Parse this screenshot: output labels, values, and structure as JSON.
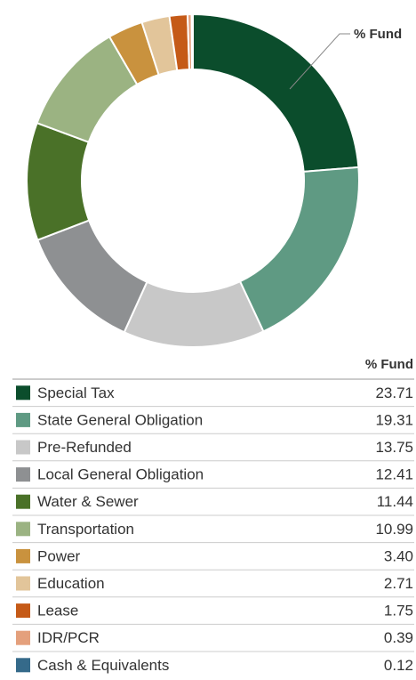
{
  "chart_data": {
    "type": "donut",
    "annotation": "% Fund",
    "value_header": "% Fund",
    "categories": [
      "Special Tax",
      "State General Obligation",
      "Pre-Refunded",
      "Local General Obligation",
      "Water & Sewer",
      "Transportation",
      "Power",
      "Education",
      "Lease",
      "IDR/PCR",
      "Cash & Equivalents"
    ],
    "values": [
      23.71,
      19.31,
      13.75,
      12.41,
      11.44,
      10.99,
      3.4,
      2.71,
      1.75,
      0.39,
      0.12
    ],
    "value_labels": [
      "23.71",
      "19.31",
      "13.75",
      "12.41",
      "11.44",
      "10.99",
      "3.40",
      "2.71",
      "1.75",
      "0.39",
      "0.12"
    ],
    "colors": [
      "#0b4d2c",
      "#5f9a83",
      "#c8c8c8",
      "#8e9092",
      "#4a7128",
      "#9bb382",
      "#c9923e",
      "#e2c59a",
      "#c55a17",
      "#e4a07c",
      "#356a8a"
    ]
  }
}
